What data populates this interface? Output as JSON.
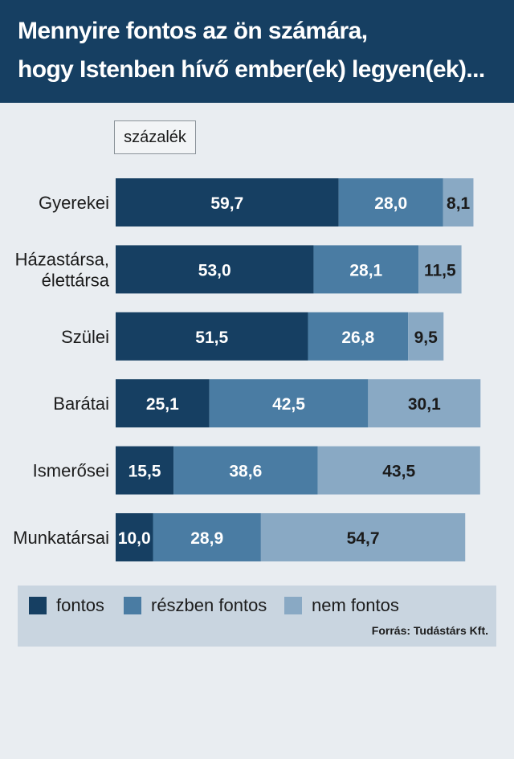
{
  "header": {
    "title_line1": "Mennyire fontos az ön számára,",
    "title_line2": "hogy Istenben hívő ember(ek) legyen(ek)..."
  },
  "unit_label": "százalék",
  "legend": {
    "items": [
      {
        "label": "fontos",
        "color": "#163f62"
      },
      {
        "label": "részben fontos",
        "color": "#4a7ca3"
      },
      {
        "label": "nem fontos",
        "color": "#89a9c4"
      }
    ]
  },
  "source": "Forrás: Tudástárs Kft.",
  "chart_data": {
    "type": "bar",
    "orientation": "horizontal",
    "stacked": true,
    "categories": [
      [
        "Gyerekei"
      ],
      [
        "Házastársa,",
        "élettársa"
      ],
      [
        "Szülei"
      ],
      [
        "Barátai"
      ],
      [
        "Ismerősei"
      ],
      [
        "Munkatársai"
      ]
    ],
    "series": [
      {
        "name": "fontos",
        "color": "#163f62",
        "label_color": "#ffffff",
        "values": [
          59.7,
          53.0,
          51.5,
          25.1,
          15.5,
          10.0
        ],
        "labels": [
          "59,7",
          "53,0",
          "51,5",
          "25,1",
          "15,5",
          "10,0"
        ]
      },
      {
        "name": "részben fontos",
        "color": "#4a7ca3",
        "label_color": "#ffffff",
        "values": [
          28.0,
          28.1,
          26.8,
          42.5,
          38.6,
          28.9
        ],
        "labels": [
          "28,0",
          "28,1",
          "26,8",
          "42,5",
          "38,6",
          "28,9"
        ]
      },
      {
        "name": "nem fontos",
        "color": "#89a9c4",
        "label_color": "#1b1b1b",
        "values": [
          8.1,
          11.5,
          9.5,
          30.1,
          43.5,
          54.7
        ],
        "labels": [
          "8,1",
          "11,5",
          "9,5",
          "30,1",
          "43,5",
          "54,7"
        ]
      }
    ],
    "xlim": [
      0,
      100
    ],
    "grid": false
  }
}
